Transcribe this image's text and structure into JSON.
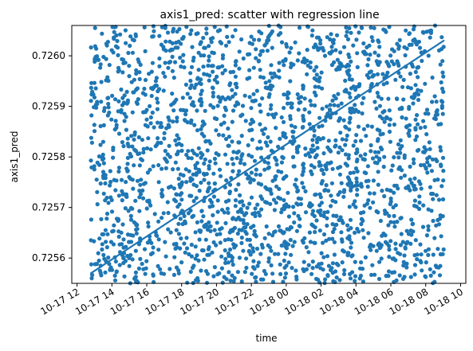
{
  "chart_data": {
    "type": "scatter",
    "title": "axis1_pred: scatter with regression line",
    "xlabel": "time",
    "ylabel": "axis1_pred",
    "x_ticks": [
      "10-17 12",
      "10-17 14",
      "10-17 16",
      "10-17 18",
      "10-17 20",
      "10-17 22",
      "10-18 00",
      "10-18 02",
      "10-18 04",
      "10-18 06",
      "10-18 08",
      "10-18 10"
    ],
    "x_tick_dates": [
      "2023-10-17T12:00",
      "2023-10-17T14:00",
      "2023-10-17T16:00",
      "2023-10-17T18:00",
      "2023-10-17T20:00",
      "2023-10-17T22:00",
      "2023-10-18T00:00",
      "2023-10-18T02:00",
      "2023-10-18T04:00",
      "2023-10-18T06:00",
      "2023-10-18T08:00",
      "2023-10-18T10:00"
    ],
    "y_ticks": [
      "0.7256",
      "0.7257",
      "0.7258",
      "0.7259",
      "0.7260"
    ],
    "y_tick_values": [
      0.7256,
      0.7257,
      0.7258,
      0.7259,
      0.726
    ],
    "xlim": [
      "2023-10-17T11:42",
      "2023-10-18T10:18"
    ],
    "ylim": [
      0.72555,
      0.72606
    ],
    "points": {
      "count": 2200,
      "x_range": [
        "2023-10-17T12:48",
        "2023-10-18T09:02"
      ],
      "y_range": [
        0.72555,
        0.72606
      ],
      "distribution": "approximately uniform"
    },
    "regression": {
      "x": [
        "2023-10-17T12:48",
        "2023-10-18T09:02"
      ],
      "y": [
        0.72557,
        0.72603
      ]
    },
    "grid": false,
    "legend": "none",
    "colors": {
      "points": "#1f77b4",
      "line": "#1f77b4"
    }
  }
}
